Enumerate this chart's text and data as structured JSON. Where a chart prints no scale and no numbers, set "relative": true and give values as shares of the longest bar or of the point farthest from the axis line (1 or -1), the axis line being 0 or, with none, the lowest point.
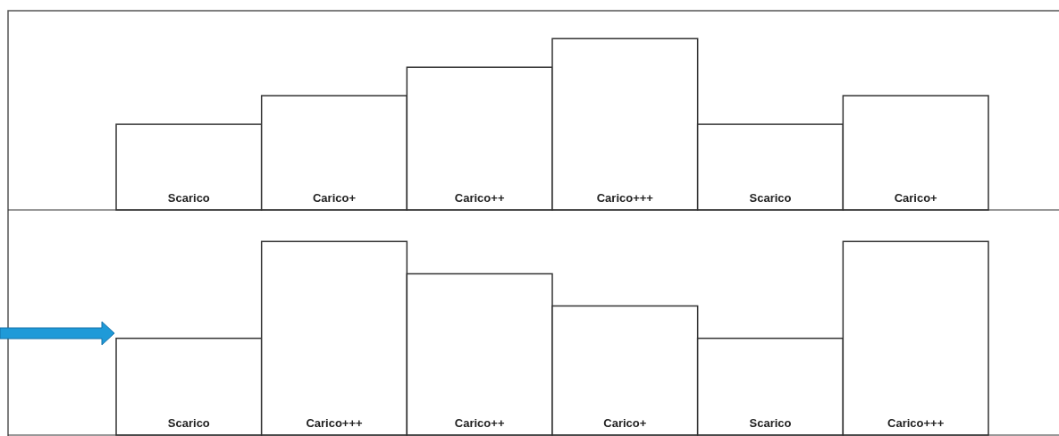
{
  "chart_data": [
    {
      "type": "bar",
      "relative": true,
      "categories": [
        "Scarico",
        "Carico+",
        "Carico++",
        "Carico+++",
        "Scarico",
        "Carico+"
      ],
      "values": [
        0.5,
        0.667,
        0.833,
        1,
        0.5,
        0.667
      ],
      "color": "#ffffff"
    },
    {
      "type": "bar",
      "relative": true,
      "categories": [
        "Scarico",
        "Carico+++",
        "Carico++",
        "Carico+",
        "Scarico",
        "Carico+++"
      ],
      "values": [
        0.5,
        1,
        0.833,
        0.667,
        0.5,
        1
      ],
      "color": "#ffffff"
    }
  ]
}
